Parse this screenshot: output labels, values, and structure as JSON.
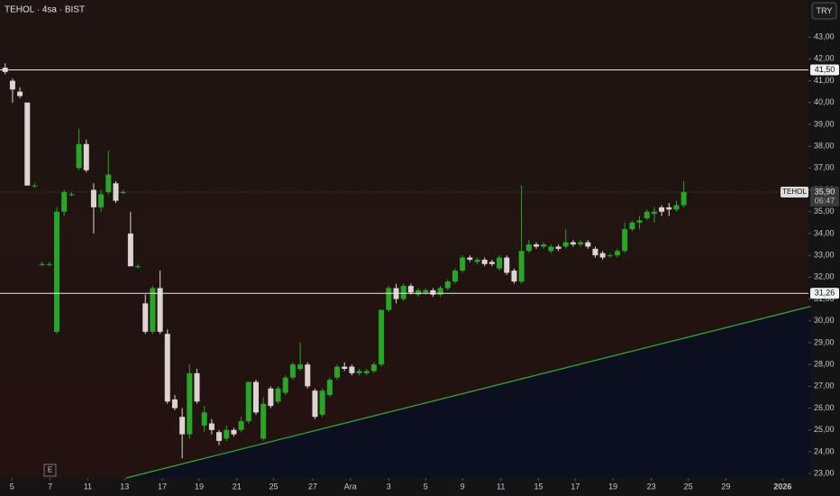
{
  "chart_data": {
    "type": "candlestick",
    "title": "TEHOL · 4sa · BIST",
    "currency": "TRY",
    "marker": "E",
    "up_color": "#26a826",
    "down_color": "#ddd3d3",
    "open": [
      41.6,
      41.0,
      40.5,
      40.0,
      36.2,
      32.6,
      32.6,
      29.5,
      35.0,
      35.8,
      37.0,
      38.1,
      36.0,
      35.2,
      35.9,
      36.3,
      35.9,
      34.0,
      32.5,
      30.8,
      29.5,
      31.5,
      29.4,
      26.4,
      25.6,
      24.8,
      27.6,
      25.2,
      25.3,
      24.9,
      24.6,
      25.0,
      25.0,
      25.4,
      27.2,
      24.6,
      26.9,
      26.3,
      26.7,
      27.4,
      27.8,
      28.0,
      26.8,
      25.7,
      26.6,
      27.4,
      27.9,
      27.9,
      27.6,
      27.6,
      27.7,
      28.0,
      30.5,
      31.5,
      31.0,
      31.6,
      31.2,
      31.3,
      31.4,
      31.2,
      31.5,
      31.8,
      32.3,
      32.9,
      32.7,
      32.8,
      32.7,
      32.4,
      32.9,
      32.3,
      31.8,
      33.2,
      33.5,
      33.4,
      33.2,
      33.4,
      33.4,
      33.6,
      33.5,
      33.6,
      33.3,
      33.1,
      33.0,
      33.0,
      33.2,
      34.2,
      34.5,
      34.7,
      34.9,
      35.2,
      35.2,
      35.1,
      35.3
    ],
    "high": [
      41.8,
      41.1,
      40.7,
      40.0,
      36.3,
      32.7,
      32.7,
      35.2,
      36.0,
      35.9,
      38.8,
      38.3,
      36.3,
      36.0,
      37.8,
      36.4,
      36.0,
      35.0,
      32.6,
      31.2,
      31.6,
      32.3,
      29.6,
      26.6,
      26.0,
      28.0,
      27.8,
      26.1,
      25.5,
      25.0,
      25.2,
      25.1,
      25.6,
      27.2,
      27.3,
      26.5,
      27.0,
      27.0,
      27.5,
      28.1,
      29.0,
      28.1,
      26.9,
      26.9,
      27.4,
      28.0,
      28.1,
      28.0,
      27.8,
      27.8,
      28.1,
      30.5,
      31.6,
      31.7,
      31.7,
      31.7,
      31.5,
      31.5,
      31.5,
      31.6,
      31.9,
      32.4,
      33.0,
      33.0,
      32.9,
      32.9,
      32.8,
      33.0,
      33.0,
      32.4,
      36.2,
      33.7,
      33.6,
      33.6,
      33.5,
      33.5,
      34.2,
      33.7,
      33.7,
      33.7,
      33.4,
      33.2,
      33.1,
      33.3,
      34.5,
      34.6,
      34.8,
      35.1,
      35.2,
      35.3,
      35.4,
      35.5,
      36.4
    ],
    "low": [
      41.3,
      40.0,
      40.2,
      36.2,
      36.1,
      32.5,
      32.5,
      29.4,
      34.8,
      35.7,
      36.9,
      36.8,
      34.0,
      35.0,
      35.8,
      35.4,
      35.8,
      32.5,
      32.4,
      29.4,
      29.4,
      29.4,
      26.2,
      25.9,
      23.7,
      24.6,
      26.2,
      24.9,
      24.8,
      24.3,
      24.5,
      24.7,
      24.9,
      25.3,
      25.7,
      24.5,
      26.0,
      26.2,
      26.6,
      27.3,
      27.7,
      26.9,
      25.5,
      25.6,
      26.5,
      27.3,
      27.7,
      27.5,
      27.5,
      27.5,
      27.6,
      27.9,
      30.4,
      30.8,
      30.9,
      31.2,
      31.1,
      31.2,
      31.1,
      31.1,
      31.4,
      31.7,
      32.2,
      32.7,
      32.6,
      32.5,
      32.5,
      32.3,
      32.1,
      31.7,
      31.7,
      33.1,
      33.3,
      33.3,
      33.1,
      33.2,
      33.3,
      33.4,
      33.4,
      33.3,
      32.9,
      32.8,
      32.9,
      32.9,
      33.1,
      34.1,
      34.2,
      34.6,
      34.5,
      34.8,
      34.8,
      35.0,
      35.2
    ],
    "close": [
      41.4,
      40.6,
      40.3,
      36.2,
      36.2,
      32.6,
      32.6,
      35.0,
      35.9,
      35.8,
      38.1,
      36.9,
      35.2,
      35.8,
      36.7,
      35.5,
      35.9,
      32.5,
      32.5,
      29.5,
      31.5,
      29.5,
      26.3,
      26.0,
      24.8,
      27.6,
      26.3,
      25.8,
      25.0,
      24.5,
      25.0,
      24.8,
      25.4,
      27.2,
      25.8,
      26.2,
      26.1,
      26.9,
      27.4,
      28.0,
      28.0,
      27.0,
      25.6,
      26.8,
      27.3,
      27.9,
      27.8,
      27.6,
      27.7,
      27.7,
      28.0,
      30.5,
      31.5,
      31.0,
      31.6,
      31.3,
      31.4,
      31.4,
      31.2,
      31.5,
      31.8,
      32.3,
      32.9,
      32.8,
      32.8,
      32.6,
      32.6,
      32.9,
      32.2,
      31.8,
      33.2,
      33.5,
      33.4,
      33.5,
      33.4,
      33.3,
      33.6,
      33.5,
      33.6,
      33.4,
      33.0,
      32.9,
      33.0,
      33.2,
      34.2,
      34.5,
      34.6,
      35.0,
      35.0,
      35.0,
      35.1,
      35.3,
      35.9
    ],
    "xlim": [
      -0.7,
      108.9
    ],
    "ylim": [
      22.8,
      44.7
    ],
    "xticks": [
      {
        "value": 0.9,
        "label": "5"
      },
      {
        "value": 6.1,
        "label": "7"
      },
      {
        "value": 11.2,
        "label": "11"
      },
      {
        "value": 16.2,
        "label": "13"
      },
      {
        "value": 21.3,
        "label": "17"
      },
      {
        "value": 26.3,
        "label": "19"
      },
      {
        "value": 31.4,
        "label": "21"
      },
      {
        "value": 36.4,
        "label": "25"
      },
      {
        "value": 41.7,
        "label": "27"
      },
      {
        "value": 46.8,
        "label": "Ara"
      },
      {
        "value": 52,
        "label": "3"
      },
      {
        "value": 57,
        "label": "5"
      },
      {
        "value": 62,
        "label": "9"
      },
      {
        "value": 67.2,
        "label": "11"
      },
      {
        "value": 72.3,
        "label": "15"
      },
      {
        "value": 77.3,
        "label": "17"
      },
      {
        "value": 82.4,
        "label": "19"
      },
      {
        "value": 87.6,
        "label": "23"
      },
      {
        "value": 92.6,
        "label": "25"
      },
      {
        "value": 97.7,
        "label": "29"
      },
      {
        "value": 105.4,
        "label": "2026"
      }
    ],
    "yticks": [
      {
        "value": 23,
        "label": "23,00"
      },
      {
        "value": 24,
        "label": "24,00"
      },
      {
        "value": 25,
        "label": "25,00"
      },
      {
        "value": 26,
        "label": "26,00"
      },
      {
        "value": 27,
        "label": "27,00"
      },
      {
        "value": 28,
        "label": "28,00"
      },
      {
        "value": 29,
        "label": "29,00"
      },
      {
        "value": 30,
        "label": "30,00"
      },
      {
        "value": 31,
        "label": "31,00"
      },
      {
        "value": 32,
        "label": "32,00"
      },
      {
        "value": 33,
        "label": "33,00"
      },
      {
        "value": 34,
        "label": "34,00"
      },
      {
        "value": 35,
        "label": "35,00"
      },
      {
        "value": 36,
        "label": "36,00"
      },
      {
        "value": 37,
        "label": "37,00"
      },
      {
        "value": 38,
        "label": "38,00"
      },
      {
        "value": 39,
        "label": "39,00"
      },
      {
        "value": 40,
        "label": "40,00"
      },
      {
        "value": 41,
        "label": "41,00"
      },
      {
        "value": 42,
        "label": "42,00"
      },
      {
        "value": 43,
        "label": "43,00"
      }
    ],
    "price_lines": [
      {
        "value": 41.5,
        "label": "41,50"
      },
      {
        "value": 31.26,
        "label": "31,26"
      }
    ],
    "last_price": {
      "value": 35.9,
      "label": "35,90",
      "symbol": "TEHOL",
      "countdown": "06:47"
    },
    "trendline": {
      "x": [
        16.4,
        109.2
      ],
      "y": [
        22.8,
        30.66
      ],
      "color": "#2db52d"
    }
  }
}
